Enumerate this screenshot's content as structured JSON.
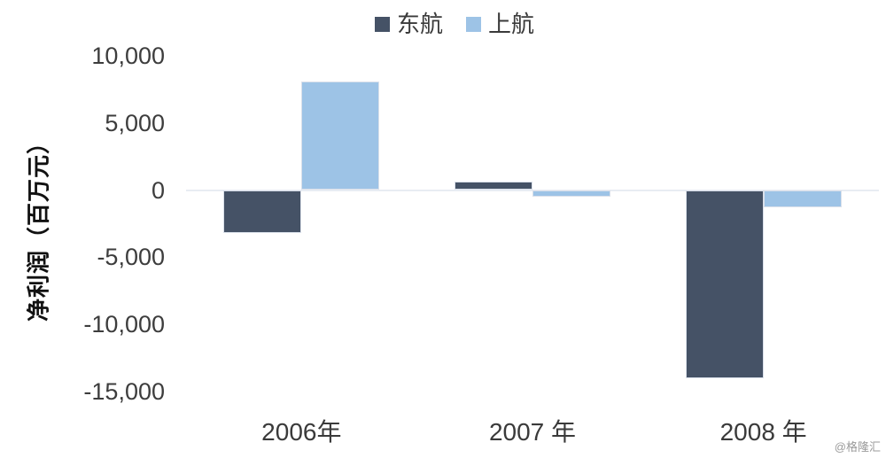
{
  "page": {
    "watermark": "@格隆汇"
  },
  "chart_data": {
    "type": "bar",
    "title": "",
    "categories": [
      "2006年",
      "2007 年",
      "2008 年"
    ],
    "series": [
      {
        "name": "东航",
        "slug": "ceair",
        "color": "#455266",
        "values": [
          -3200,
          600,
          -14000
        ]
      },
      {
        "name": "上航",
        "slug": "shanghai-air",
        "color": "#9dc3e6",
        "values": [
          8100,
          -500,
          -1300
        ]
      }
    ],
    "xlabel": "",
    "ylabel": "净利润（百万元）",
    "yticks": [
      10000,
      5000,
      0,
      -5000,
      -10000,
      -15000
    ],
    "ytick_labels": [
      "10,000",
      "5,000",
      "0",
      "-5,000",
      "-10,000",
      "-15,000"
    ],
    "ylim": [
      -15000,
      10000
    ],
    "unit": "百万元",
    "legend_position": "top-center",
    "grid": false,
    "axis_line": "zero-only"
  }
}
